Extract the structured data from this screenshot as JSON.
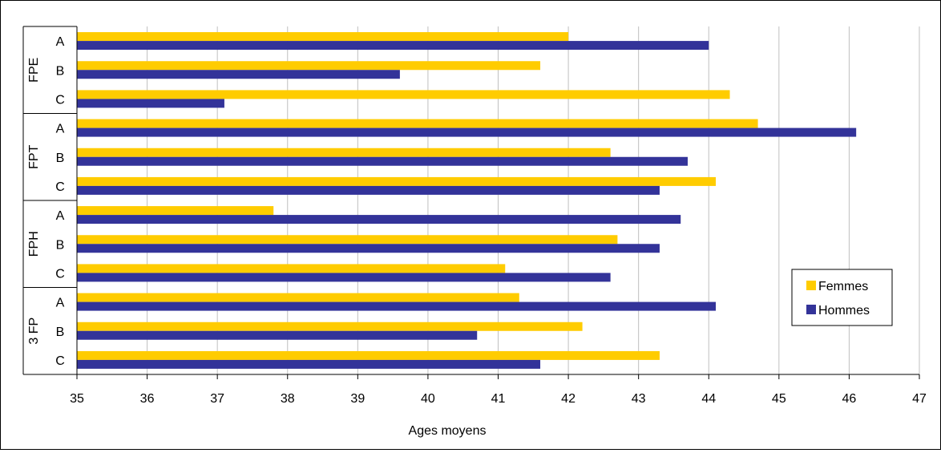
{
  "chart_data": {
    "type": "bar",
    "orientation": "horizontal",
    "xlabel": "Ages moyens",
    "xlim": [
      35,
      47
    ],
    "xticks": [
      35,
      36,
      37,
      38,
      39,
      40,
      41,
      42,
      43,
      44,
      45,
      46,
      47
    ],
    "grid": "vertical",
    "groups": [
      {
        "name": "FPE",
        "categories": [
          "A",
          "B",
          "C"
        ]
      },
      {
        "name": "FPT",
        "categories": [
          "A",
          "B",
          "C"
        ]
      },
      {
        "name": "FPH",
        "categories": [
          "A",
          "B",
          "C"
        ]
      },
      {
        "name": "3 FP",
        "categories": [
          "A",
          "B",
          "C"
        ]
      }
    ],
    "series": [
      {
        "name": "Femmes",
        "color": "#FFCC00",
        "values": [
          42.0,
          41.6,
          44.3,
          44.7,
          42.6,
          44.1,
          37.8,
          42.7,
          41.1,
          41.3,
          42.2,
          43.3
        ]
      },
      {
        "name": "Hommes",
        "color": "#333399",
        "values": [
          44.0,
          39.6,
          37.1,
          46.1,
          43.7,
          43.3,
          43.6,
          43.3,
          42.6,
          44.1,
          40.7,
          41.6
        ]
      }
    ],
    "legend": {
      "position": "right",
      "entries": [
        "Femmes",
        "Hommes"
      ]
    }
  }
}
